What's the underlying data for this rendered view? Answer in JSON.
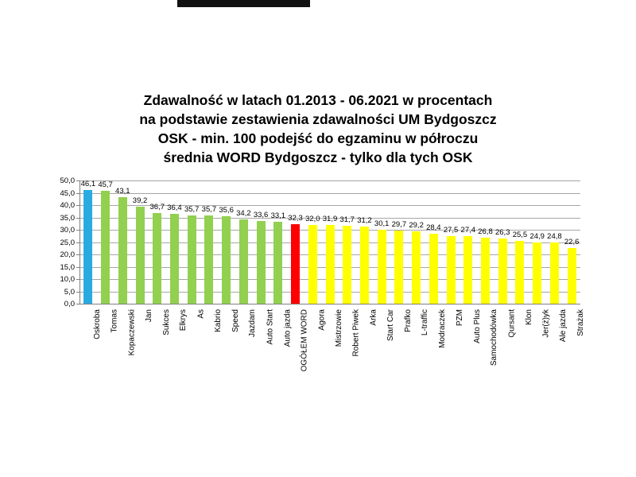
{
  "page": {
    "background": "#ffffff"
  },
  "artifacts": {
    "redaction_bar_color": "#121212"
  },
  "chart_data": {
    "type": "bar",
    "title": "Zdawalność w latach 01.2013 - 06.2021 w procentach na podstawie zestawienia zdawalności UM Bydgoszcz OSK - min. 100 podejść do egzaminu w półroczu średnia WORD Bydgoszcz - tylko dla tych OSK",
    "title_lines": [
      "Zdawalność w latach 01.2013 - 06.2021 w procentach",
      "na podstawie zestawienia zdawalności UM Bydgoszcz",
      "OSK - min. 100 podejść do egzaminu w półroczu",
      "średnia WORD Bydgoszcz - tylko dla tych OSK"
    ],
    "categories": [
      "Oskroba",
      "Tomas",
      "Kopaczewski",
      "Jan",
      "Sukces",
      "Elkrys",
      "As",
      "Kabrio",
      "Speed",
      "Jazdam",
      "Auto Start",
      "Auto jazda",
      "OGÓŁEM WORD",
      "Agora",
      "Mistrzowie",
      "Robert Piwek",
      "Arka",
      "Start Car",
      "Prafko",
      "L-traffic",
      "Modraczek",
      "PZM",
      "Auto Plus",
      "Samochodówka",
      "Qursant",
      "Klon",
      "Jer(ż)yk",
      "Ale jazda",
      "Strażak"
    ],
    "values": [
      46.1,
      45.7,
      43.1,
      39.2,
      36.7,
      36.4,
      35.7,
      35.7,
      35.6,
      34.2,
      33.6,
      33.1,
      32.3,
      32.0,
      31.9,
      31.7,
      31.2,
      30.1,
      29.7,
      29.2,
      28.4,
      27.5,
      27.4,
      26.8,
      26.3,
      25.5,
      24.9,
      24.8,
      22.6
    ],
    "value_labels": [
      "46,1",
      "45,7",
      "43,1",
      "39,2",
      "36,7",
      "36,4",
      "35,7",
      "35,7",
      "35,6",
      "34,2",
      "33,6",
      "33,1",
      "32,3",
      "32,0",
      "31,9",
      "31,7",
      "31,2",
      "30,1",
      "29,7",
      "29,2",
      "28,4",
      "27,5",
      "27,4",
      "26,8",
      "26,3",
      "25,5",
      "24,9",
      "24,8",
      "22,6"
    ],
    "bar_colors": [
      "#29ABE2",
      "#92D050",
      "#92D050",
      "#92D050",
      "#92D050",
      "#92D050",
      "#92D050",
      "#92D050",
      "#92D050",
      "#92D050",
      "#92D050",
      "#92D050",
      "#FF0000",
      "#FFFF00",
      "#FFFF00",
      "#FFFF00",
      "#FFFF00",
      "#FFFF00",
      "#FFFF00",
      "#FFFF00",
      "#FFFF00",
      "#FFFF00",
      "#FFFF00",
      "#FFFF00",
      "#FFFF00",
      "#FFFF00",
      "#FFFF00",
      "#FFFF00",
      "#FFFF00"
    ],
    "ylim": [
      0,
      50
    ],
    "ytick_step": 5,
    "ytick_labels": [
      "0,0",
      "5,0",
      "10,0",
      "15,0",
      "20,0",
      "25,0",
      "30,0",
      "35,0",
      "40,0",
      "45,0",
      "50,0"
    ],
    "xlabel": "",
    "ylabel": "",
    "grid": true,
    "legend": false,
    "colors": {
      "axis": "#808080",
      "gridline": "#A6A6A6",
      "text": "#000000"
    }
  }
}
